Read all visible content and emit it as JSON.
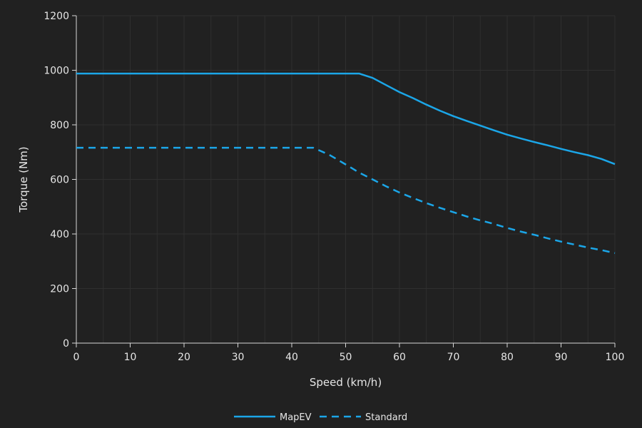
{
  "chart_data": {
    "type": "line",
    "title": "",
    "xlabel": "Speed (km/h)",
    "ylabel": "Torque (Nm)",
    "xlim": [
      0,
      100
    ],
    "ylim": [
      0,
      1200
    ],
    "xticks": [
      0,
      10,
      20,
      30,
      40,
      50,
      60,
      70,
      80,
      90,
      100
    ],
    "yticks": [
      0,
      200,
      400,
      600,
      800,
      1000,
      1200
    ],
    "grid": true,
    "legend": "bottom-center",
    "series": [
      {
        "name": "MapEV",
        "style": "solid",
        "color": "#1ba6e8",
        "x": [
          0,
          10,
          20,
          30,
          40,
          50,
          52.5,
          55,
          57.5,
          60,
          62.5,
          65,
          67.5,
          70,
          72.5,
          75,
          77.5,
          80,
          82.5,
          85,
          87.5,
          90,
          92.5,
          95,
          97.5,
          100
        ],
        "y": [
          988,
          988,
          988,
          988,
          988,
          988,
          988,
          972,
          946,
          920,
          898,
          874,
          852,
          832,
          814,
          797,
          780,
          764,
          750,
          737,
          725,
          712,
          700,
          689,
          675,
          656
        ]
      },
      {
        "name": "Standard",
        "style": "dashed",
        "color": "#1ba6e8",
        "x": [
          0,
          10,
          20,
          30,
          40,
          44,
          47,
          50,
          52.5,
          55,
          57.5,
          60,
          62.5,
          65,
          67.5,
          70,
          72.5,
          75,
          77.5,
          80,
          82.5,
          85,
          87.5,
          90,
          92.5,
          95,
          97.5,
          100
        ],
        "y": [
          716,
          716,
          716,
          716,
          716,
          716,
          690,
          655,
          625,
          600,
          575,
          552,
          532,
          513,
          496,
          480,
          464,
          450,
          437,
          422,
          409,
          397,
          384,
          372,
          361,
          350,
          341,
          330
        ]
      }
    ]
  },
  "colors": {
    "background": "#212121",
    "grid": "#2f2f2f",
    "axis": "#d8d8d8",
    "text": "#e6e6e6",
    "line": "#1ba6e8"
  }
}
